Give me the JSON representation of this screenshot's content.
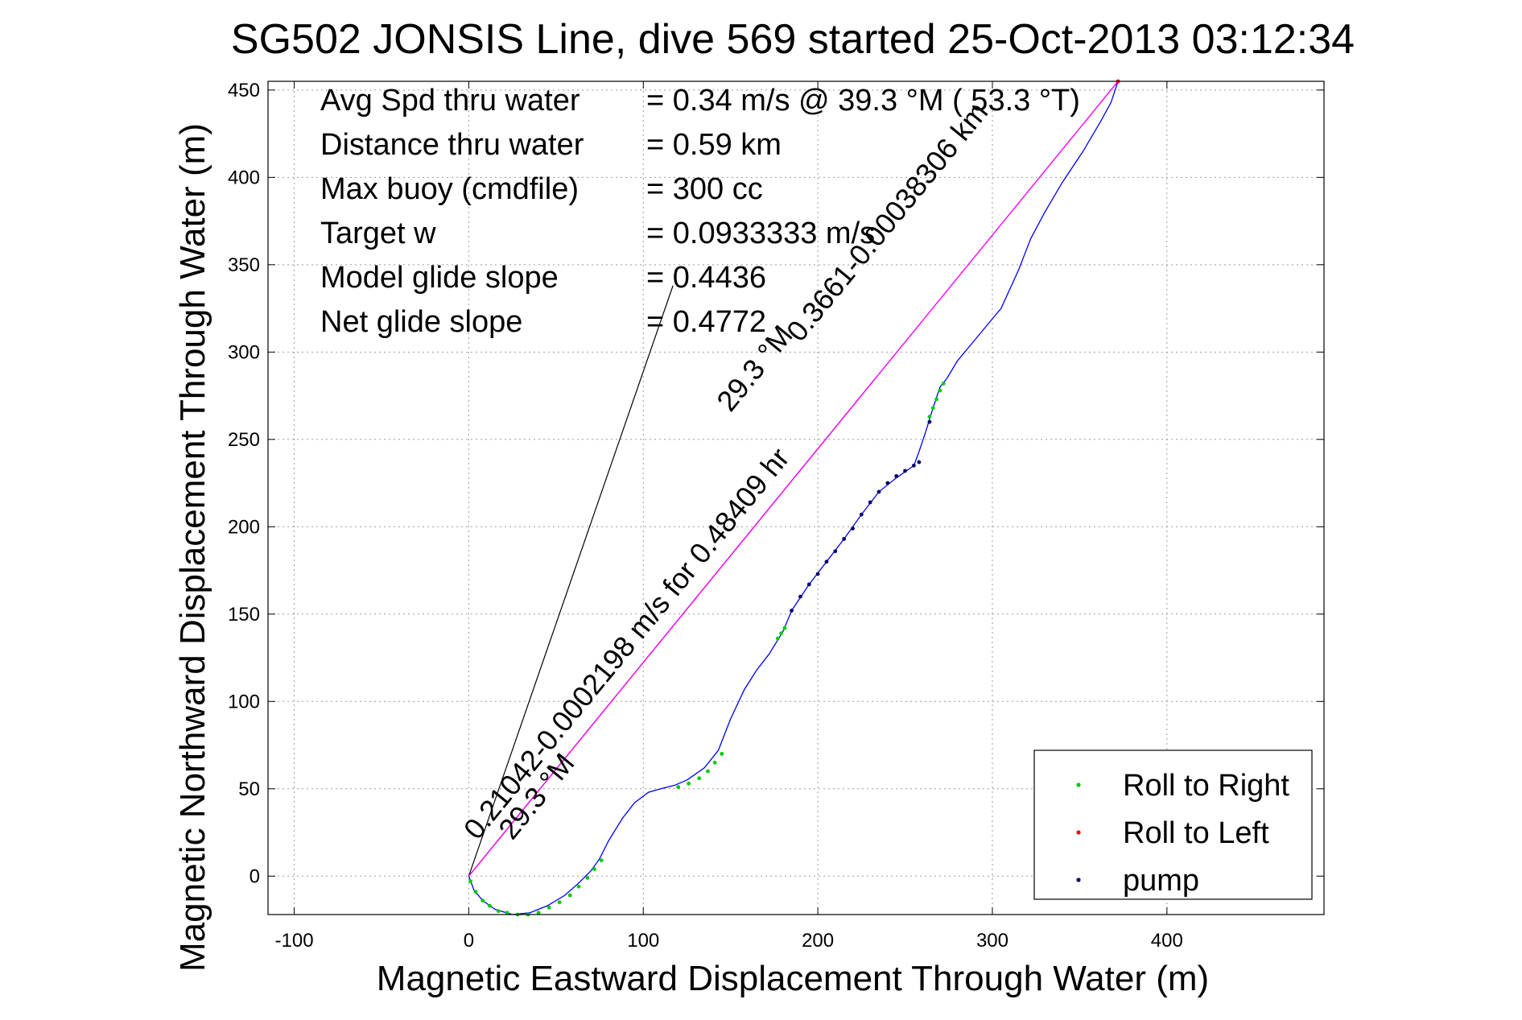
{
  "chart_data": {
    "type": "scatter",
    "title": "SG502 JONSIS Line, dive 569 started 25-Oct-2013 03:12:34",
    "xlabel": "Magnetic Eastward Displacement Through Water (m)",
    "ylabel": "Magnetic Northward Displacement Through Water (m)",
    "xlim": [
      -115,
      490
    ],
    "ylim": [
      -22,
      455
    ],
    "xticks": [
      -100,
      0,
      100,
      200,
      300,
      400
    ],
    "yticks": [
      0,
      50,
      100,
      150,
      200,
      250,
      300,
      350,
      400,
      450
    ],
    "grid": true,
    "legend_position": "bottom-right",
    "colors": {
      "track": "#0000ff",
      "roll_right": "#00cc00",
      "roll_left": "#ff0000",
      "pump": "#000066",
      "current": "#ff00ff",
      "reference_lines": "#000000"
    },
    "stats": [
      {
        "label": "Avg Spd thru water",
        "value": "=  0.34 m/s @  39.3 °M ( 53.3 °T)"
      },
      {
        "label": "Distance thru water",
        "value": "=  0.59 km"
      },
      {
        "label": "Max buoy (cmdfile)",
        "value": "= 300 cc"
      },
      {
        "label": "Target w",
        "value": "= 0.0933333 m/s"
      },
      {
        "label": "Model glide slope",
        "value": "= 0.4436"
      },
      {
        "label": "Net glide slope",
        "value": "= 0.4772"
      }
    ],
    "annotations": [
      {
        "text": "0.21042-0.0002198 m/s for 0.48409 hr",
        "at": [
          5,
          20
        ],
        "angle_deg": 50.7
      },
      {
        "text": "29.3 °M",
        "at": [
          25,
          20
        ],
        "angle_deg": 50.7
      },
      {
        "text": "29.3 °M",
        "at": [
          150,
          265
        ],
        "angle_deg": 50.7
      },
      {
        "text": "0.3661-0.00038306 km",
        "at": [
          190,
          305
        ],
        "angle_deg": 50.7
      }
    ],
    "legend": [
      {
        "name": "Roll to Right",
        "color": "#00cc00"
      },
      {
        "name": "Roll to Left",
        "color": "#ff0000"
      },
      {
        "name": "pump",
        "color": "#000066"
      }
    ],
    "reference_lines": [
      {
        "from": [
          0,
          0
        ],
        "to": [
          117,
          338
        ]
      },
      {
        "from": [
          0,
          0
        ],
        "to": [
          233,
          285
        ]
      }
    ],
    "current_line": {
      "from": [
        0,
        0
      ],
      "to": [
        372,
        455
      ]
    },
    "track": {
      "x": [
        0,
        3,
        8,
        15,
        25,
        35,
        45,
        55,
        63,
        70,
        75,
        80,
        88,
        95,
        103,
        110,
        118,
        125,
        135,
        143,
        150,
        158,
        165,
        172,
        180,
        185,
        195,
        205,
        215,
        225,
        235,
        245,
        255,
        258,
        262,
        266,
        270,
        274,
        280,
        290,
        305,
        315,
        322,
        330,
        340,
        352,
        362,
        368,
        372
      ],
      "y": [
        0,
        -8,
        -14,
        -19,
        -22,
        -21,
        -17,
        -11,
        -4,
        3,
        10,
        20,
        33,
        42,
        48,
        50,
        52,
        55,
        62,
        72,
        90,
        107,
        118,
        127,
        140,
        152,
        167,
        180,
        193,
        207,
        220,
        228,
        235,
        243,
        255,
        268,
        280,
        285,
        295,
        307,
        325,
        347,
        365,
        380,
        397,
        415,
        432,
        443,
        455
      ]
    },
    "roll_right": {
      "x": [
        1,
        4,
        8,
        12,
        17,
        22,
        28,
        34,
        40,
        46,
        52,
        58,
        63,
        68,
        72,
        76,
        120,
        126,
        132,
        137,
        141,
        145,
        177,
        179,
        181,
        264,
        266,
        268,
        270,
        272
      ],
      "y": [
        -3,
        -9,
        -14,
        -17,
        -20,
        -21,
        -22,
        -22,
        -21,
        -18,
        -15,
        -11,
        -6,
        -1,
        4,
        9,
        51,
        53,
        56,
        60,
        65,
        70,
        136,
        139,
        142,
        263,
        268,
        273,
        278,
        282
      ]
    },
    "roll_left": {
      "x": [
        372
      ],
      "y": [
        455
      ]
    },
    "pump": {
      "x": [
        185,
        190,
        195,
        200,
        205,
        210,
        215,
        220,
        225,
        230,
        235,
        240,
        245,
        250,
        255,
        258,
        264
      ],
      "y": [
        152,
        160,
        167,
        173,
        180,
        186,
        193,
        199,
        207,
        214,
        220,
        225,
        229,
        232,
        235,
        237,
        260
      ]
    }
  }
}
